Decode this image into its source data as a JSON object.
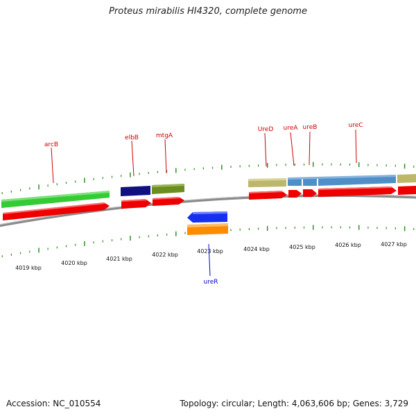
{
  "title": "Proteus mirabilis HI4320, complete genome",
  "footer": {
    "accession": "Accession: NC_010554",
    "stats": "Topology: circular; Length: 4,063,606 bp; Genes: 3,729"
  },
  "scale": {
    "unit": "kbp",
    "labels": [
      "4019 kbp",
      "4020 kbp",
      "4021 kbp",
      "4022 kbp",
      "4023 kbp",
      "4024 kbp",
      "4025 kbp",
      "4026 kbp",
      "4027 kbp"
    ]
  },
  "colors": {
    "backbone": "#8a8a8a",
    "cds": "#ee0000",
    "label_forward": "#cc0000",
    "label_reverse": "#0000cc",
    "tick": "#2e8b22",
    "arcB": "#33cc33",
    "elbB": "#101080",
    "mtgA": "#6b8e23",
    "ureD": "#bdb76b",
    "urease": "#4f8fc8",
    "ureR": "#1530ee",
    "ureR_cds": "#ff8c00"
  },
  "genes": [
    {
      "name": "arcB",
      "strand": "forward"
    },
    {
      "name": "elbB",
      "strand": "forward"
    },
    {
      "name": "mtgA",
      "strand": "forward"
    },
    {
      "name": "UreD",
      "strand": "forward"
    },
    {
      "name": "ureA",
      "strand": "forward"
    },
    {
      "name": "ureB",
      "strand": "forward"
    },
    {
      "name": "ureC",
      "strand": "forward"
    },
    {
      "name": "ureR",
      "strand": "reverse"
    }
  ]
}
